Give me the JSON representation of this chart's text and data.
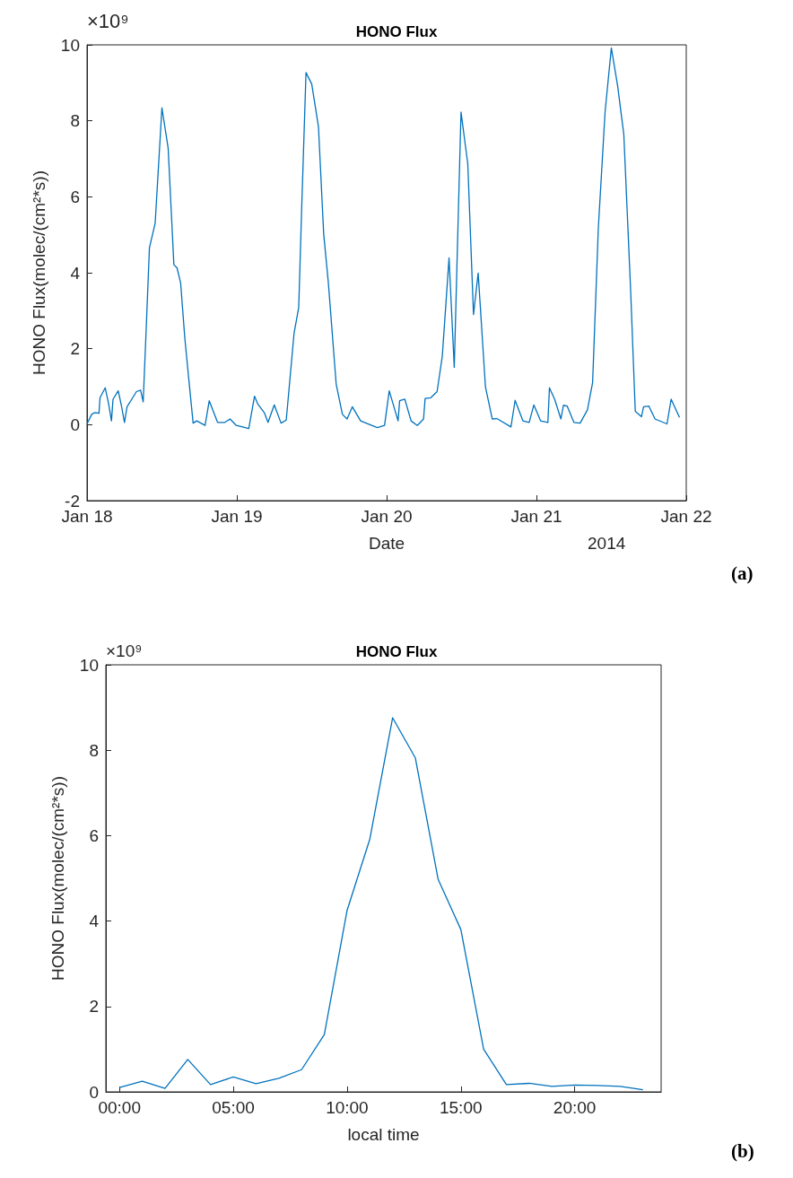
{
  "chart_data": [
    {
      "type": "line",
      "title": "HONO Flux",
      "xlabel": "Date",
      "ylabel": "HONO Flux(molec/(cm²*s))",
      "annotations": [
        "×10⁹",
        "2014",
        "(a)"
      ],
      "x": [
        "2014-01-18T00:00",
        "2014-01-18T00:45",
        "2014-01-18T01:15",
        "2014-01-18T01:55",
        "2014-01-18T02:05",
        "2014-01-18T02:55",
        "2014-01-18T03:25",
        "2014-01-18T03:55",
        "2014-01-18T04:10",
        "2014-01-18T05:00",
        "2014-01-18T05:30",
        "2014-01-18T06:00",
        "2014-01-18T06:25",
        "2014-01-18T07:10",
        "2014-01-18T07:55",
        "2014-01-18T08:35",
        "2014-01-18T09:00",
        "2014-01-18T09:30",
        "2014-01-18T10:00",
        "2014-01-18T10:55",
        "2014-01-18T12:00",
        "2014-01-18T13:00",
        "2014-01-18T13:55",
        "2014-01-18T14:25",
        "2014-01-18T15:00",
        "2014-01-18T15:40",
        "2014-01-18T16:20",
        "2014-01-18T17:00",
        "2014-01-18T17:35",
        "2014-01-18T18:55",
        "2014-01-18T19:35",
        "2014-01-18T20:55",
        "2014-01-18T22:05",
        "2014-01-18T22:55",
        "2014-01-18T23:55",
        "2014-01-19T01:55",
        "2014-01-19T02:50",
        "2014-01-19T03:20",
        "2014-01-19T04:25",
        "2014-01-19T05:00",
        "2014-01-19T06:00",
        "2014-01-19T07:05",
        "2014-01-19T07:55",
        "2014-01-19T09:10",
        "2014-01-19T09:55",
        "2014-01-19T10:25",
        "2014-01-19T11:05",
        "2014-01-19T12:00",
        "2014-01-19T13:05",
        "2014-01-19T13:55",
        "2014-01-19T14:40",
        "2014-01-19T15:55",
        "2014-01-19T16:55",
        "2014-01-19T17:40",
        "2014-01-19T18:30",
        "2014-01-19T19:50",
        "2014-01-19T22:30",
        "2014-01-19T23:40",
        "2014-01-20T00:25",
        "2014-01-20T01:50",
        "2014-01-20T02:05",
        "2014-01-20T02:55",
        "2014-01-20T03:55",
        "2014-01-20T04:55",
        "2014-01-20T05:55",
        "2014-01-20T06:10",
        "2014-01-20T07:05",
        "2014-01-20T08:05",
        "2014-01-20T08:55",
        "2014-01-20T10:00",
        "2014-01-20T10:50",
        "2014-01-20T11:55",
        "2014-01-20T13:00",
        "2014-01-20T13:55",
        "2014-01-20T14:40",
        "2014-01-20T15:50",
        "2014-01-20T16:55",
        "2014-01-20T17:40",
        "2014-01-20T19:55",
        "2014-01-20T20:35",
        "2014-01-20T21:50",
        "2014-01-20T22:50",
        "2014-01-20T23:35",
        "2014-01-21T00:40",
        "2014-01-21T01:50",
        "2014-01-21T02:05",
        "2014-01-21T02:55",
        "2014-01-21T03:55",
        "2014-01-21T04:20",
        "2014-01-21T04:55",
        "2014-01-21T06:00",
        "2014-01-21T07:00",
        "2014-01-21T08:10",
        "2014-01-21T09:00",
        "2014-01-21T09:55",
        "2014-01-21T11:00",
        "2014-01-21T12:00",
        "2014-01-21T13:00",
        "2014-01-21T14:00",
        "2014-01-21T15:05",
        "2014-01-21T15:50",
        "2014-01-21T16:50",
        "2014-01-21T17:10",
        "2014-01-21T18:00",
        "2014-01-21T19:00",
        "2014-01-21T20:55",
        "2014-01-21T21:35",
        "2014-01-21T22:55"
      ],
      "series": [
        {
          "color": "#0072bd",
          "values": [
            0.02,
            0.27,
            0.32,
            0.3,
            0.71,
            0.97,
            0.59,
            0.1,
            0.67,
            0.89,
            0.51,
            0.06,
            0.47,
            0.67,
            0.87,
            0.91,
            0.6,
            2.6,
            4.66,
            5.3,
            8.34,
            7.28,
            4.21,
            4.13,
            3.73,
            2.28,
            1.15,
            0.04,
            0.1,
            -0.02,
            0.63,
            0.06,
            0.06,
            0.15,
            -0.02,
            -0.1,
            0.75,
            0.55,
            0.31,
            0.06,
            0.52,
            0.04,
            0.12,
            2.4,
            3.09,
            5.83,
            9.27,
            8.97,
            7.84,
            5.02,
            3.73,
            1.07,
            0.27,
            0.15,
            0.47,
            0.1,
            -0.08,
            -0.02,
            0.89,
            0.1,
            0.63,
            0.67,
            0.1,
            -0.02,
            0.15,
            0.69,
            0.71,
            0.87,
            1.8,
            4.39,
            1.51,
            8.23,
            6.87,
            2.9,
            3.99,
            0.99,
            0.15,
            0.16,
            -0.06,
            0.64,
            0.1,
            0.06,
            0.52,
            0.1,
            0.06,
            0.97,
            0.67,
            0.15,
            0.51,
            0.49,
            0.06,
            0.04,
            0.39,
            1.11,
            5.18,
            8.24,
            9.92,
            8.93,
            7.64,
            3.57,
            0.35,
            0.21,
            0.47,
            0.49,
            0.15,
            0.02,
            0.67,
            0.19
          ]
        }
      ],
      "xlim": [
        "2014-01-18",
        "2014-01-22"
      ],
      "xticks": [
        {
          "value": "2014-01-18",
          "label": "Jan 18"
        },
        {
          "value": "2014-01-19",
          "label": "Jan 19"
        },
        {
          "value": "2014-01-20",
          "label": "Jan 20"
        },
        {
          "value": "2014-01-21",
          "label": "Jan 21"
        },
        {
          "value": "2014-01-22",
          "label": "Jan 22"
        }
      ],
      "ylim": [
        -2,
        10
      ],
      "yticks": [
        -2,
        0,
        2,
        4,
        6,
        8,
        10
      ],
      "grid": false,
      "marker": "none",
      "line_style": "solid"
    },
    {
      "type": "line",
      "title": "HONO Flux",
      "xlabel": "local time",
      "ylabel": "HONO Flux(molec/(cm²*s))",
      "annotations": [
        "×10⁹",
        "(b)"
      ],
      "x": [
        0,
        1,
        2,
        3,
        4,
        5,
        6,
        7,
        8,
        9,
        10,
        11,
        12,
        13,
        14,
        15,
        16,
        17,
        18,
        19,
        20,
        21,
        22,
        23
      ],
      "series": [
        {
          "color": "#0072bd",
          "values": [
            0.1,
            0.25,
            0.08,
            0.76,
            0.17,
            0.35,
            0.19,
            0.32,
            0.52,
            1.34,
            4.25,
            5.92,
            8.76,
            7.82,
            4.98,
            3.8,
            1.0,
            0.17,
            0.2,
            0.13,
            0.16,
            0.15,
            0.13,
            0.05
          ]
        }
      ],
      "xlim": [
        -0.6,
        23.8
      ],
      "xticks": [
        {
          "value": 0,
          "label": "00:00"
        },
        {
          "value": 5,
          "label": "05:00"
        },
        {
          "value": 10,
          "label": "10:00"
        },
        {
          "value": 15,
          "label": "15:00"
        },
        {
          "value": 20,
          "label": "20:00"
        }
      ],
      "ylim": [
        0,
        10
      ],
      "yticks": [
        0,
        2,
        4,
        6,
        8,
        10
      ],
      "grid": false,
      "marker": "none",
      "line_style": "solid"
    }
  ]
}
